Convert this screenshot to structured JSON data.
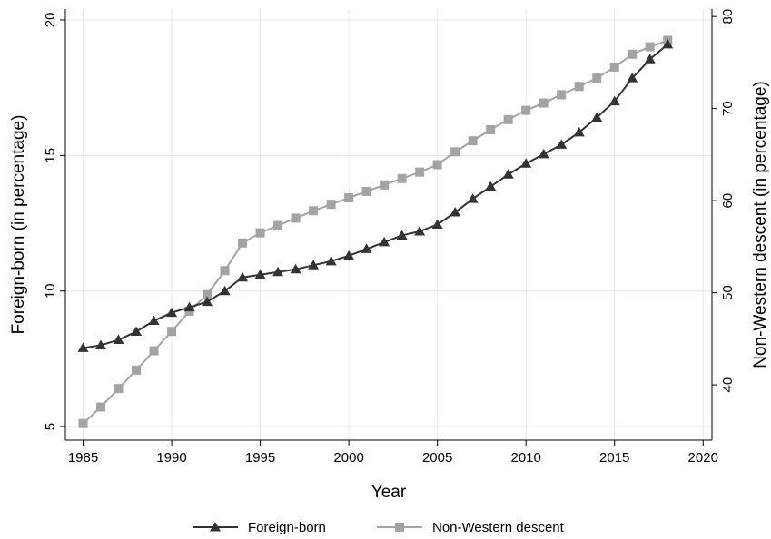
{
  "chart_data": {
    "type": "line",
    "xlabel": "Year",
    "ylabel_left": "Foreign-born (in percentage)",
    "ylabel_right": "Non-Western descent (in percentage)",
    "xlim": [
      1984,
      2020.5
    ],
    "ylim_left": [
      4.5,
      20.4
    ],
    "ylim_right": [
      34.0,
      80.8
    ],
    "xticks": [
      1985,
      1990,
      1995,
      2000,
      2005,
      2010,
      2015,
      2020
    ],
    "yticks_left": [
      5,
      10,
      15,
      20
    ],
    "yticks_right": [
      40,
      50,
      60,
      70,
      80
    ],
    "grid": true,
    "legend_position": "bottom-center",
    "series": [
      {
        "name": "Foreign-born",
        "axis": "left",
        "color": "#333333",
        "marker": "triangle",
        "x": [
          1985,
          1986,
          1987,
          1988,
          1989,
          1990,
          1991,
          1992,
          1993,
          1994,
          1995,
          1996,
          1997,
          1998,
          1999,
          2000,
          2001,
          2002,
          2003,
          2004,
          2005,
          2006,
          2007,
          2008,
          2009,
          2010,
          2011,
          2012,
          2013,
          2014,
          2015,
          2016,
          2017,
          2018
        ],
        "values": [
          7.9,
          8.0,
          8.2,
          8.5,
          8.9,
          9.2,
          9.4,
          9.6,
          10.0,
          10.5,
          10.6,
          10.7,
          10.8,
          10.95,
          11.1,
          11.3,
          11.55,
          11.8,
          12.05,
          12.2,
          12.45,
          12.9,
          13.4,
          13.85,
          14.3,
          14.7,
          15.05,
          15.4,
          15.85,
          16.4,
          17.0,
          17.85,
          18.55,
          19.1
        ]
      },
      {
        "name": "Non-Western descent",
        "axis": "right",
        "color": "#a3a3a3",
        "marker": "square",
        "x": [
          1985,
          1986,
          1987,
          1988,
          1989,
          1990,
          1991,
          1992,
          1993,
          1994,
          1995,
          1996,
          1997,
          1998,
          1999,
          2000,
          2001,
          2002,
          2003,
          2004,
          2005,
          2006,
          2007,
          2008,
          2009,
          2010,
          2011,
          2012,
          2013,
          2014,
          2015,
          2016,
          2017,
          2018
        ],
        "values": [
          35.8,
          37.6,
          39.6,
          41.6,
          43.7,
          45.8,
          48.0,
          49.8,
          52.4,
          55.4,
          56.5,
          57.3,
          58.1,
          58.9,
          59.6,
          60.3,
          61.0,
          61.7,
          62.4,
          63.1,
          63.9,
          65.3,
          66.5,
          67.7,
          68.8,
          69.8,
          70.6,
          71.5,
          72.4,
          73.3,
          74.5,
          75.9,
          76.7,
          77.4
        ]
      }
    ]
  }
}
